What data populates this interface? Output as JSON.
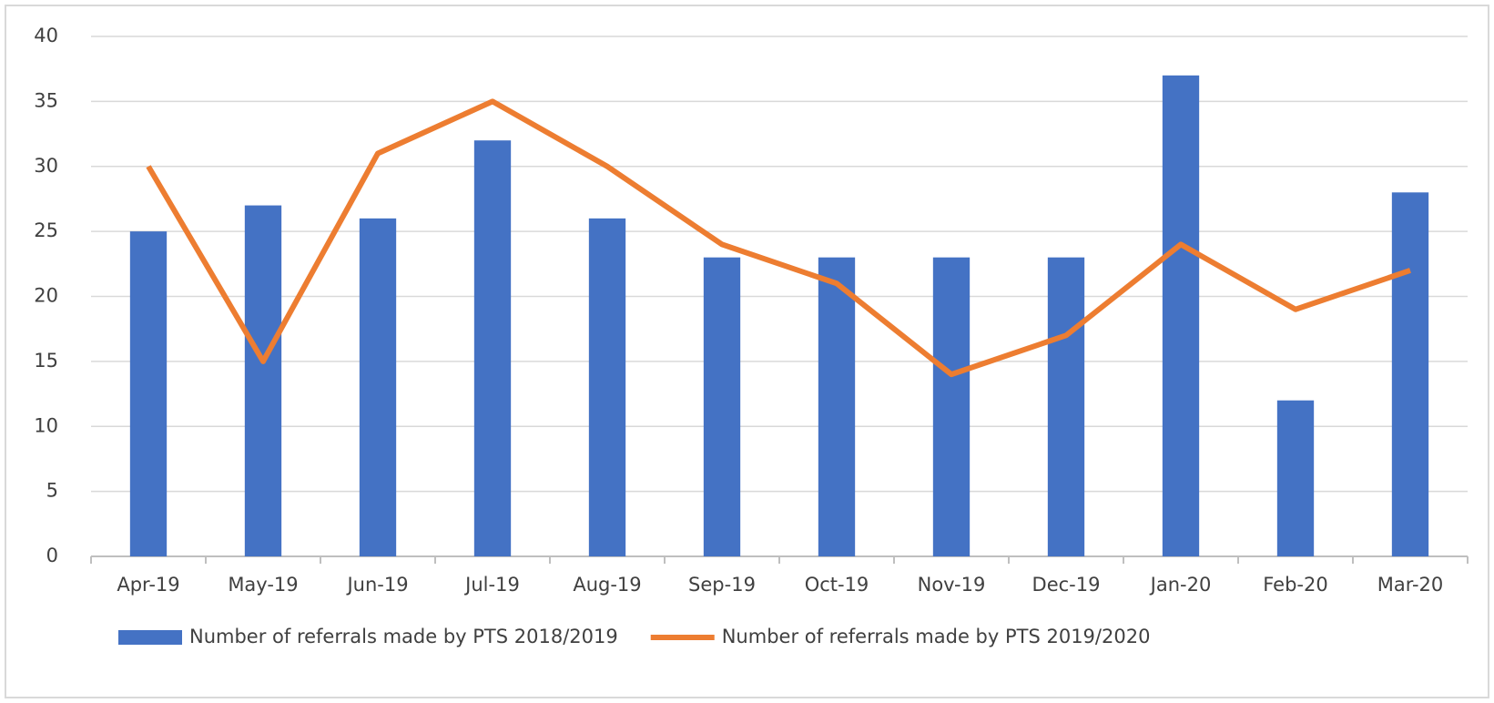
{
  "chart_data": {
    "type": "bar",
    "categories": [
      "Apr-19",
      "May-19",
      "Jun-19",
      "Jul-19",
      "Aug-19",
      "Sep-19",
      "Oct-19",
      "Nov-19",
      "Dec-19",
      "Jan-20",
      "Feb-20",
      "Mar-20"
    ],
    "series": [
      {
        "name": "Number of referrals made by PTS 2018/2019",
        "type": "bar",
        "color": "#4472c4",
        "values": [
          25,
          27,
          26,
          32,
          26,
          23,
          23,
          23,
          23,
          37,
          12,
          28
        ]
      },
      {
        "name": "Number of referrals made by PTS 2019/2020",
        "type": "line",
        "color": "#ed7d31",
        "values": [
          30,
          15,
          31,
          35,
          30,
          24,
          21,
          14,
          17,
          24,
          19,
          22
        ]
      }
    ],
    "ylim": [
      0,
      40
    ],
    "yticks": [
      0,
      5,
      10,
      15,
      20,
      25,
      30,
      35,
      40
    ],
    "grid": true,
    "legend": "bottom"
  }
}
